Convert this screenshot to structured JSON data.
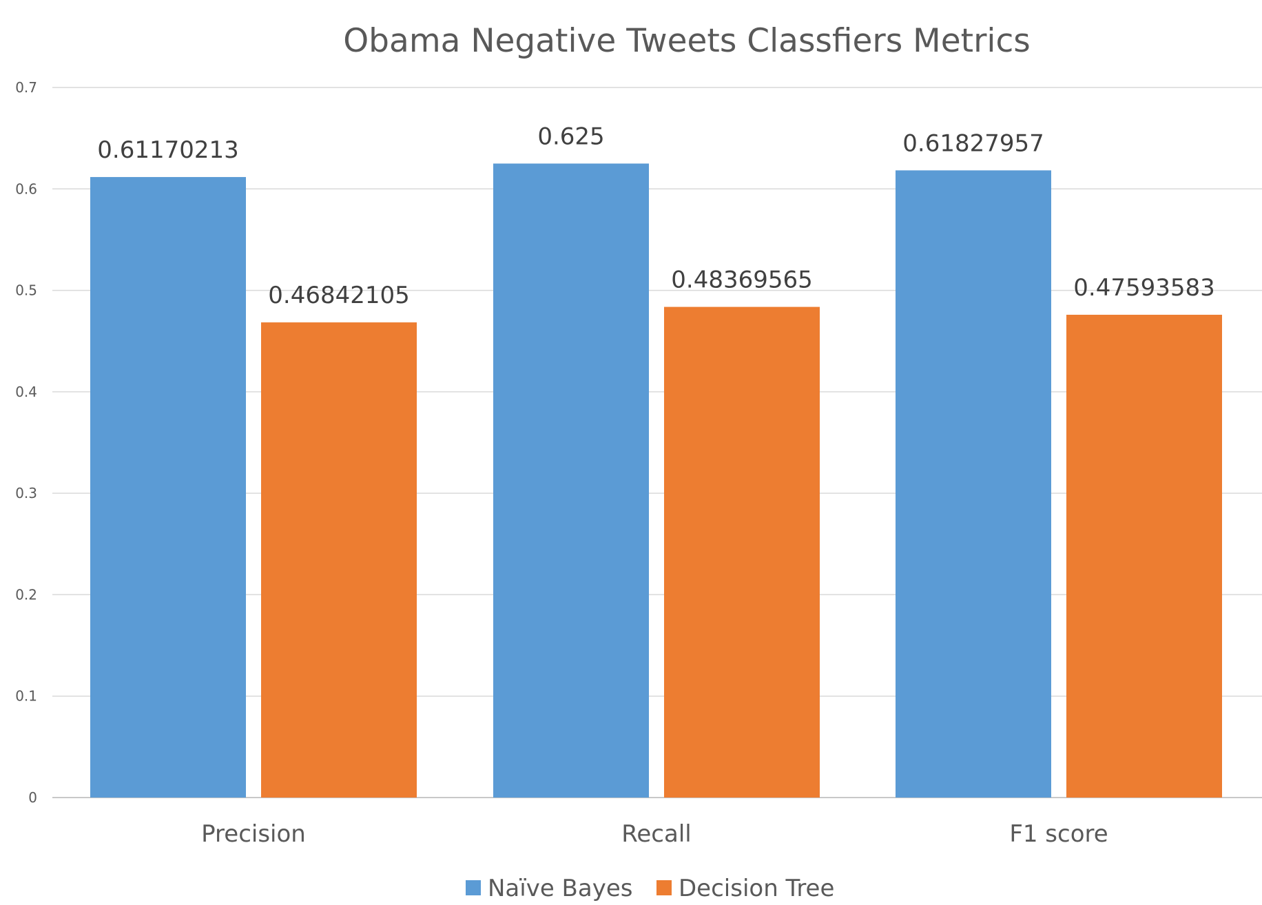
{
  "chart_data": {
    "type": "bar",
    "title": "Obama Negative Tweets Classfiers Metrics",
    "categories": [
      "Precision",
      "Recall",
      "F1 score"
    ],
    "series": [
      {
        "name": "Naïve Bayes",
        "color": "#5B9BD5",
        "values": [
          0.61170213,
          0.625,
          0.61827957
        ],
        "labels": [
          "0.61170213",
          "0.625",
          "0.61827957"
        ]
      },
      {
        "name": "Decision Tree",
        "color": "#ED7D31",
        "values": [
          0.46842105,
          0.48369565,
          0.47593583
        ],
        "labels": [
          "0.46842105",
          "0.48369565",
          "0.47593583"
        ]
      }
    ],
    "ylim": [
      0,
      0.7
    ],
    "yticks": [
      "0",
      "0.1",
      "0.2",
      "0.3",
      "0.4",
      "0.5",
      "0.6",
      "0.7"
    ],
    "xlabel": "",
    "ylabel": "",
    "grid": true,
    "legend_position": "bottom"
  }
}
